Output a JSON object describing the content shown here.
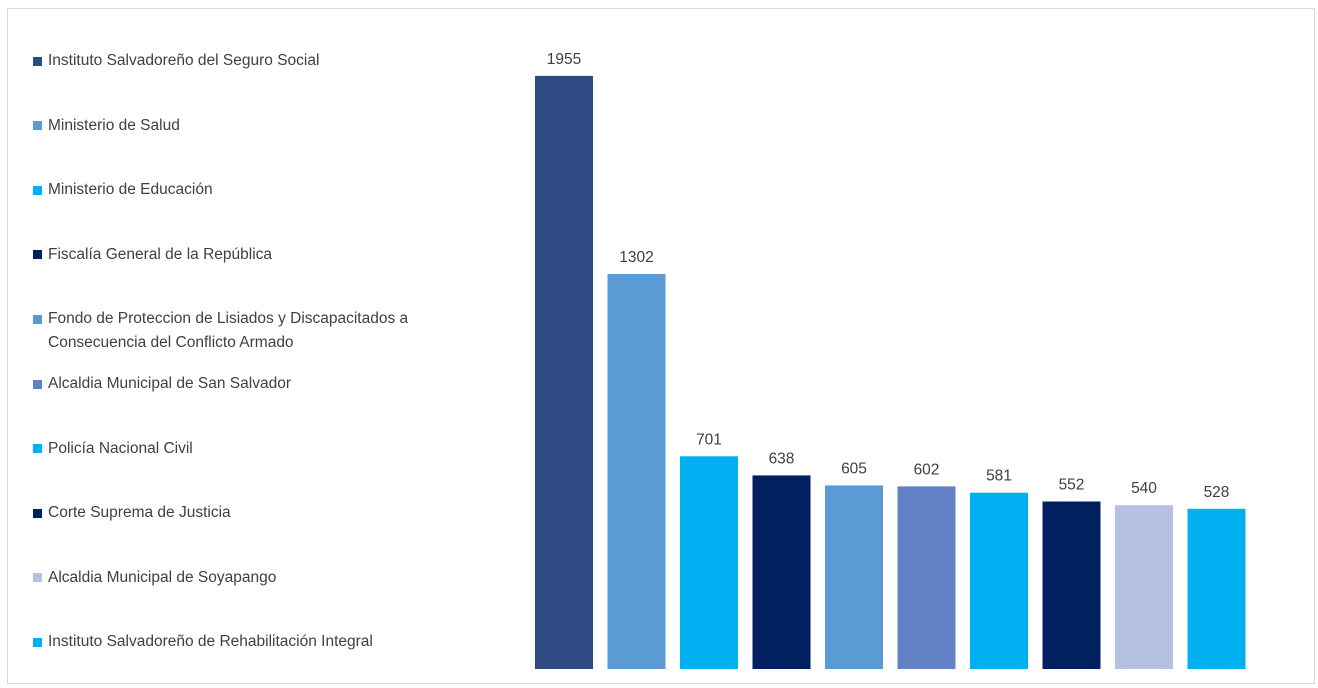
{
  "chart_data": {
    "type": "bar",
    "title": "",
    "xlabel": "",
    "ylabel": "",
    "ylim": [
      0,
      2200
    ],
    "grid": false,
    "legend_position": "left",
    "categories": [
      "Instituto Salvadoreño del Seguro Social",
      "Ministerio de Salud",
      "Ministerio de Educación",
      "Fiscalía General de la República",
      "Fondo de Proteccion de Lisiados y Discapacitados a Consecuencia del Conflicto Armado",
      "Alcaldia Municipal de San Salvador",
      "Policía Nacional Civil",
      "Corte Suprema de Justicia",
      "Alcaldia Municipal de Soyapango",
      "Instituto Salvadoreño de Rehabilitación Integral"
    ],
    "values": [
      1955,
      1302,
      701,
      638,
      605,
      602,
      581,
      552,
      540,
      528
    ],
    "colors": [
      "#2e4a82",
      "#5b9bd5",
      "#00b0f0",
      "#002060",
      "#5b9bd5",
      "#6281c6",
      "#00b0f0",
      "#002060",
      "#b4c1e1",
      "#00b0f0"
    ]
  }
}
